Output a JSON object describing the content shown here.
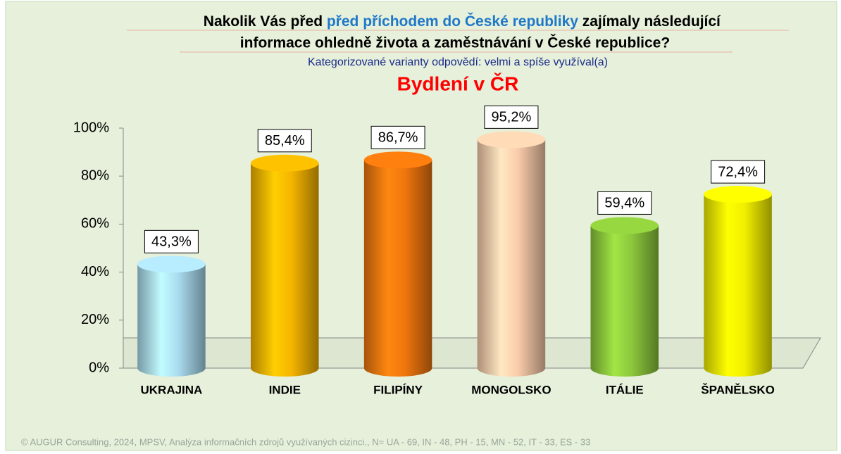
{
  "chart_data": {
    "type": "bar",
    "title": {
      "line1": [
        "Nakolik Vás před ",
        "před příchodem do České republiky",
        " zajímaly následující"
      ],
      "line2": "informace ohledně života a zaměstnávání v České republice?"
    },
    "subtitle": "Kategorizované varianty odpovědí: velmi a spíše využíval(a)",
    "chart_title": "Bydlení v ČR",
    "categories": [
      "UKRAJINA",
      "INDIE",
      "FILIPÍNY",
      "MONGOLSKO",
      "ITÁLIE",
      "ŠPANĚLSKO"
    ],
    "values": [
      43.3,
      85.4,
      86.7,
      95.2,
      59.4,
      72.4
    ],
    "value_labels": [
      "43,3%",
      "85,4%",
      "86,7%",
      "95,2%",
      "59,4%",
      "72,4%"
    ],
    "colors": [
      "#a9dbef",
      "#f5b400",
      "#f0760e",
      "#f9cbaa",
      "#8cc83c",
      "#f2ef00"
    ],
    "ylim": [
      0,
      100
    ],
    "yticks": [
      {
        "value": 0,
        "label": "0%"
      },
      {
        "value": 20,
        "label": "20%"
      },
      {
        "value": 40,
        "label": "40%"
      },
      {
        "value": 60,
        "label": "60%"
      },
      {
        "value": 80,
        "label": "80%"
      },
      {
        "value": 100,
        "label": "100%"
      }
    ],
    "footer": "© AUGUR Consulting, 2024, MPSV, Analýza informačních zdrojů využívaných cizinci., N= UA - 69, IN - 48, PH - 15, MN - 52, IT - 33, ES - 33"
  }
}
